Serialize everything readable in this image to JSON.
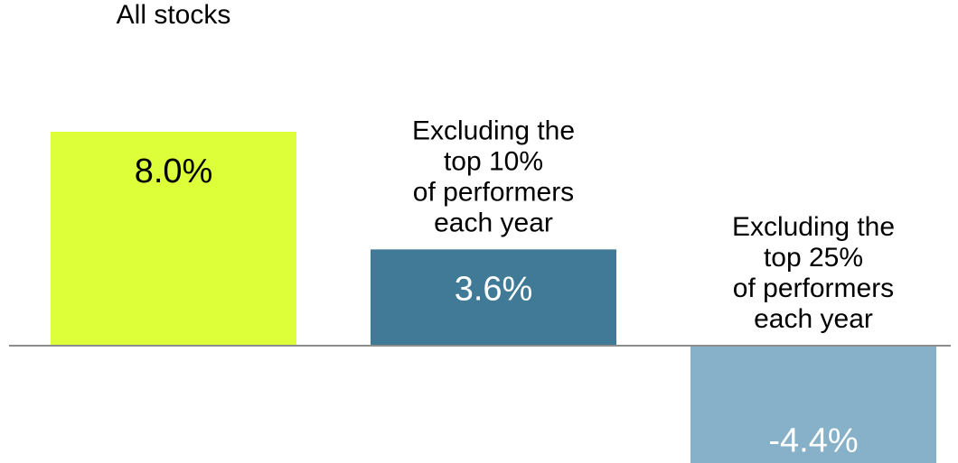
{
  "chart_data": {
    "type": "bar",
    "categories": [
      [
        "All stocks"
      ],
      [
        "Excluding the",
        "top 10%",
        "of performers",
        "each year"
      ],
      [
        "Excluding the",
        "top 25%",
        "of performers",
        "each year"
      ]
    ],
    "values": [
      8.0,
      3.6,
      -4.4
    ],
    "data_labels": [
      "8.0%",
      "3.6%",
      "-4.4%"
    ],
    "colors": [
      "#dcff3a",
      "#417a96",
      "#86b1c8"
    ],
    "label_colors": [
      "#000000",
      "#ffffff",
      "#ffffff"
    ],
    "baseline_color": "#8c8c8c",
    "ylim": [
      -4.4,
      8.0
    ],
    "grid": false,
    "legend": false
  }
}
